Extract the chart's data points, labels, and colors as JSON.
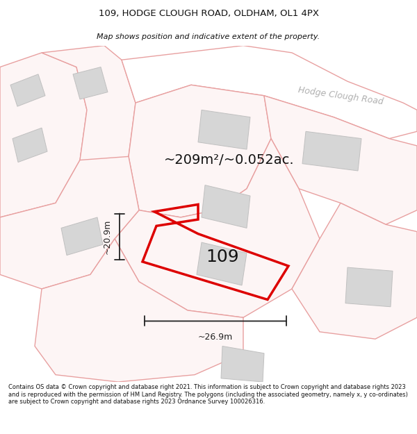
{
  "title_line1": "109, HODGE CLOUGH ROAD, OLDHAM, OL1 4PX",
  "title_line2": "Map shows position and indicative extent of the property.",
  "road_label": "Hodge Clough Road",
  "area_label": "~209m²/~0.052ac.",
  "plot_label": "109",
  "width_label": "~26.9m",
  "height_label": "~20.9m",
  "footer_text": "Contains OS data © Crown copyright and database right 2021. This information is subject to Crown copyright and database rights 2023 and is reproduced with the permission of HM Land Registry. The polygons (including the associated geometry, namely x, y co-ordinates) are subject to Crown copyright and database rights 2023 Ordnance Survey 100026316.",
  "background_color": "#ffffff",
  "map_bg": "#f7f3f3",
  "building_fill": "#d6d6d6",
  "building_edge": "#c0c0c0",
  "parcel_fill": "#fdf5f5",
  "parcel_edge": "#e8a0a0",
  "road_fill": "#ffffff",
  "road_edge": "#e8a0a0",
  "plot_color": "#dd0000",
  "dim_color": "#222222",
  "road_label_color": "#b0b0b0",
  "text_color": "#111111",
  "footer_color": "#111111",
  "title_color": "#111111"
}
